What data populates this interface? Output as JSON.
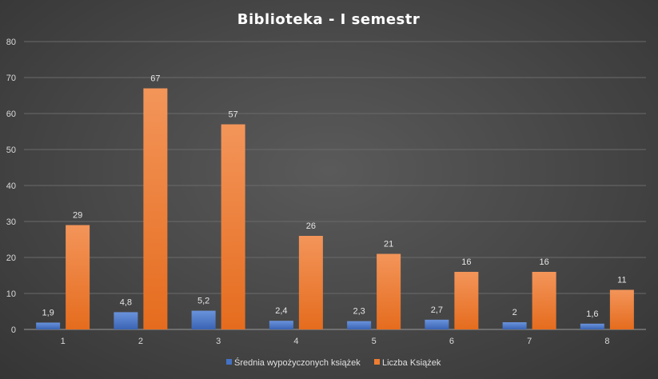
{
  "chart_data": {
    "type": "bar",
    "title": "Biblioteka  - I semestr",
    "categories": [
      "1",
      "2",
      "3",
      "4",
      "5",
      "6",
      "7",
      "8"
    ],
    "series": [
      {
        "name": "Średnia wypożyczonych książek",
        "values": [
          1.9,
          4.8,
          5.2,
          2.4,
          2.3,
          2.7,
          2,
          1.6
        ],
        "labels": [
          "1,9",
          "4,8",
          "5,2",
          "2,4",
          "2,3",
          "2,7",
          "2",
          "1,6"
        ],
        "color": "#4472C4"
      },
      {
        "name": "Liczba Książek",
        "values": [
          29,
          67,
          57,
          26,
          21,
          16,
          16,
          11
        ],
        "labels": [
          "29",
          "67",
          "57",
          "26",
          "21",
          "16",
          "16",
          "11"
        ],
        "color": "#ED7D31"
      }
    ],
    "yticks": [
      "0",
      "10",
      "20",
      "30",
      "40",
      "50",
      "60",
      "70",
      "80"
    ],
    "ylim": [
      0,
      80
    ],
    "grid": true,
    "legend": "bottom"
  }
}
